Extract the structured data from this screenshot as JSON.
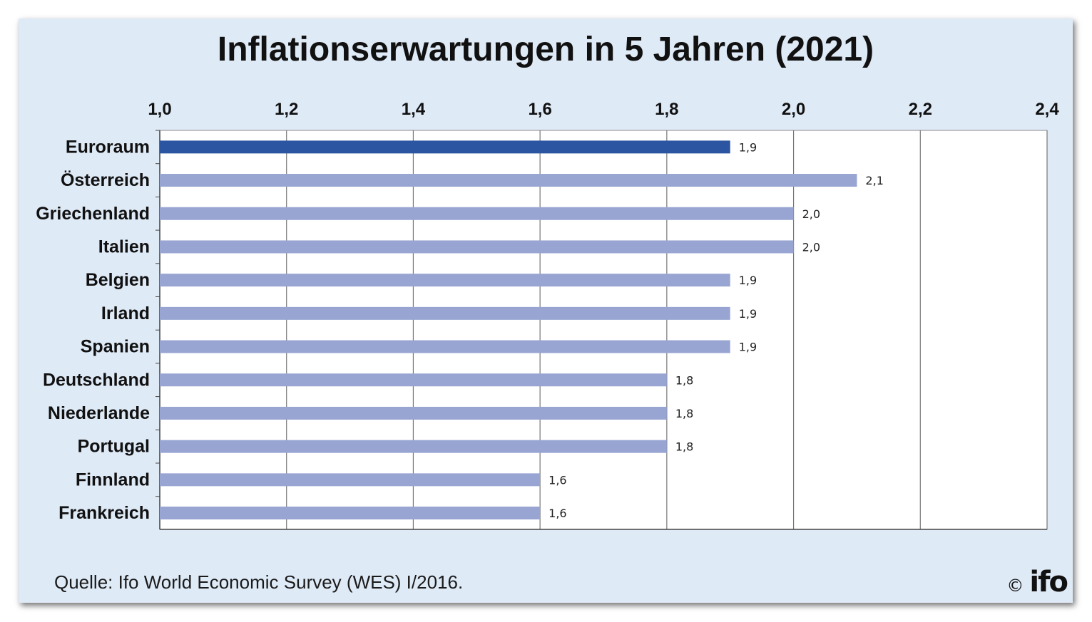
{
  "title": "Inflationserwartungen in 5 Jahren (2021)",
  "source": "Quelle: Ifo World Economic Survey (WES) I/2016.",
  "logo": {
    "copyright": "©",
    "text": "ifo"
  },
  "colors": {
    "background": "#dfeaf7",
    "plot_background": "#ffffff",
    "highlight_bar": "#2b55a0",
    "bar": "#98a5d2",
    "grid": "#777777"
  },
  "chart_data": {
    "type": "bar",
    "orientation": "horizontal",
    "title": "Inflationserwartungen in 5 Jahren (2021)",
    "categories": [
      "Euroraum",
      "Österreich",
      "Griechenland",
      "Italien",
      "Belgien",
      "Irland",
      "Spanien",
      "Deutschland",
      "Niederlande",
      "Portugal",
      "Finnland",
      "Frankreich"
    ],
    "values": [
      1.9,
      2.1,
      2.0,
      2.0,
      1.9,
      1.9,
      1.9,
      1.8,
      1.8,
      1.8,
      1.6,
      1.6
    ],
    "value_labels": [
      "1,9",
      "2,1",
      "2,0",
      "2,0",
      "1,9",
      "1,9",
      "1,9",
      "1,8",
      "1,8",
      "1,8",
      "1,6",
      "1,6"
    ],
    "highlight": [
      "Euroraum"
    ],
    "xlim": [
      1.0,
      2.4
    ],
    "x_ticks": [
      1.0,
      1.2,
      1.4,
      1.6,
      1.8,
      2.0,
      2.2,
      2.4
    ],
    "x_tick_labels": [
      "1,0",
      "1,2",
      "1,4",
      "1,6",
      "1,8",
      "2,0",
      "2,2",
      "2,4"
    ],
    "x_axis_position": "top",
    "xlabel": "",
    "ylabel": "",
    "grid": true,
    "legend": "none"
  }
}
